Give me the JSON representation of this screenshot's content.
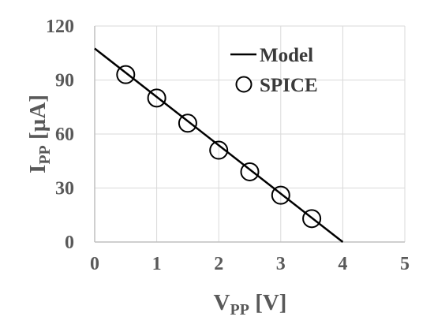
{
  "chart_data": {
    "type": "line",
    "title": "",
    "xlabel": {
      "main": "V",
      "sub": "PP",
      "unit": " [V]"
    },
    "ylabel": {
      "main": "I",
      "sub": "PP",
      "unit": " [µA]"
    },
    "xlim": [
      0,
      5
    ],
    "ylim": [
      0,
      120
    ],
    "xticks": [
      "0",
      "1",
      "2",
      "3",
      "4",
      "5"
    ],
    "yticks": [
      "0",
      "30",
      "60",
      "90",
      "120"
    ],
    "grid": true,
    "legend": {
      "placement": "top-right"
    },
    "series": [
      {
        "name": "Model",
        "kind": "line",
        "color": "#000000",
        "x": [
          0,
          4
        ],
        "y": [
          107.5,
          0
        ]
      },
      {
        "name": "SPICE",
        "kind": "scatter",
        "marker": "open-circle",
        "color": "#000000",
        "x": [
          0.5,
          1.0,
          1.5,
          2.0,
          2.5,
          3.0,
          3.5
        ],
        "y": [
          93,
          80,
          66,
          51,
          39,
          26,
          13
        ]
      }
    ]
  }
}
